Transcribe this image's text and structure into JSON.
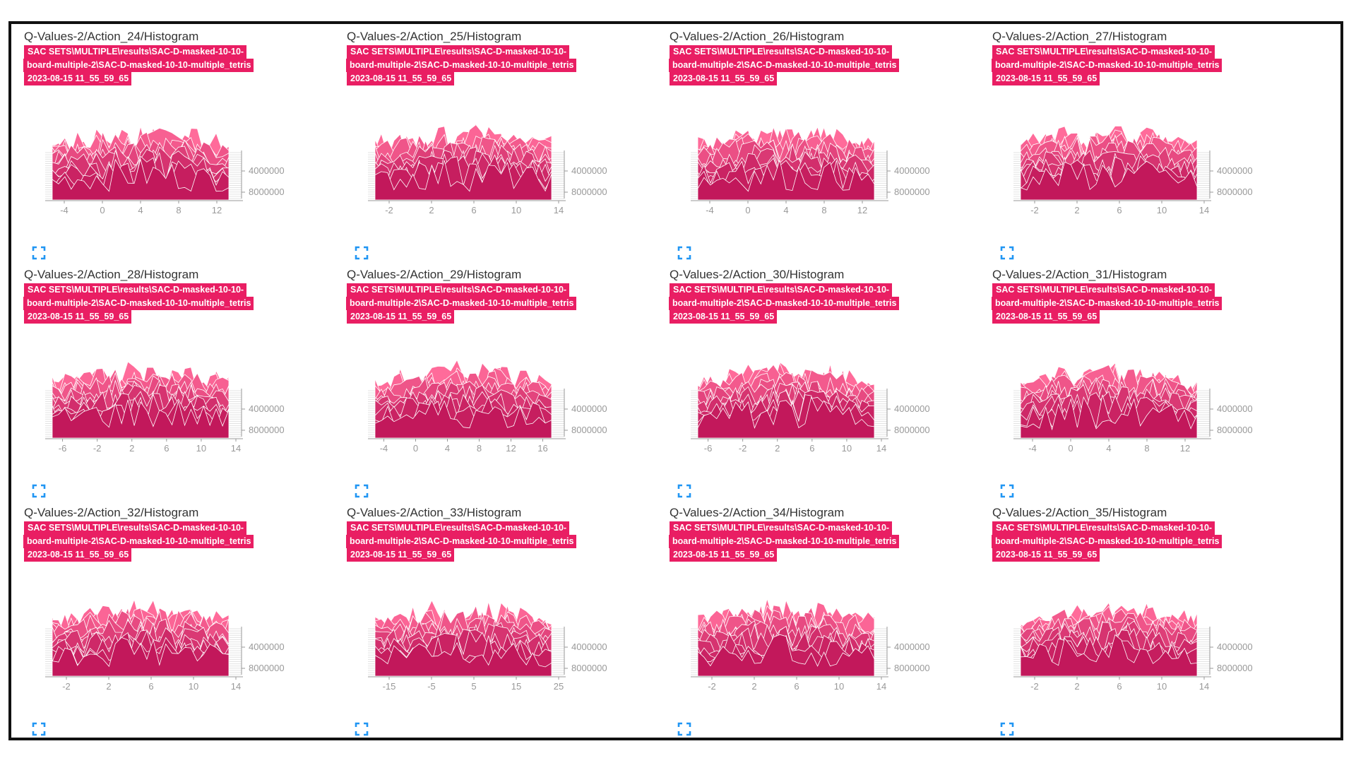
{
  "run": {
    "line1": "SAC SETS\\MULTIPLE\\results\\SAC-D-masked-10-10-",
    "line2": "board-multiple-2\\SAC-D-masked-10-10-multiple_tetris",
    "line3": "2023-08-15 11_55_59_65",
    "tag_color": "#e91e63"
  },
  "colors": {
    "back": "#ff6b9a",
    "front": "#c2185b",
    "stroke": "#ffffff",
    "axis": "#999999",
    "expand_icon": "#2196f3"
  },
  "y_ticks": [
    "4000000",
    "8000000"
  ],
  "cards": [
    {
      "title": "Q-Values-2/Action_24/Histogram",
      "x_ticks": [
        "-4",
        "0",
        "4",
        "8",
        "12"
      ],
      "x_range": [
        -6,
        14
      ]
    },
    {
      "title": "Q-Values-2/Action_25/Histogram",
      "x_ticks": [
        "-2",
        "2",
        "6",
        "10",
        "14"
      ],
      "x_range": [
        -4,
        14
      ]
    },
    {
      "title": "Q-Values-2/Action_26/Histogram",
      "x_ticks": [
        "-4",
        "0",
        "4",
        "8",
        "12"
      ],
      "x_range": [
        -6,
        14
      ]
    },
    {
      "title": "Q-Values-2/Action_27/Histogram",
      "x_ticks": [
        "-2",
        "2",
        "6",
        "10",
        "14"
      ],
      "x_range": [
        -4,
        14
      ]
    },
    {
      "title": "Q-Values-2/Action_28/Histogram",
      "x_ticks": [
        "-6",
        "-2",
        "2",
        "6",
        "10",
        "14"
      ],
      "x_range": [
        -8,
        14
      ]
    },
    {
      "title": "Q-Values-2/Action_29/Histogram",
      "x_ticks": [
        "-4",
        "0",
        "4",
        "8",
        "12",
        "16"
      ],
      "x_range": [
        -6,
        18
      ]
    },
    {
      "title": "Q-Values-2/Action_30/Histogram",
      "x_ticks": [
        "-6",
        "-2",
        "2",
        "6",
        "10",
        "14"
      ],
      "x_range": [
        -8,
        14
      ]
    },
    {
      "title": "Q-Values-2/Action_31/Histogram",
      "x_ticks": [
        "-4",
        "0",
        "4",
        "8",
        "12"
      ],
      "x_range": [
        -6,
        14
      ]
    },
    {
      "title": "Q-Values-2/Action_32/Histogram",
      "x_ticks": [
        "-2",
        "2",
        "6",
        "10",
        "14"
      ],
      "x_range": [
        -4,
        14
      ]
    },
    {
      "title": "Q-Values-2/Action_33/Histogram",
      "x_ticks": [
        "-15",
        "-5",
        "5",
        "15",
        "25"
      ],
      "x_range": [
        -20,
        25
      ]
    },
    {
      "title": "Q-Values-2/Action_34/Histogram",
      "x_ticks": [
        "-2",
        "2",
        "6",
        "10",
        "14"
      ],
      "x_range": [
        -4,
        14
      ]
    },
    {
      "title": "Q-Values-2/Action_35/Histogram",
      "x_ticks": [
        "-2",
        "2",
        "6",
        "10",
        "14"
      ],
      "x_range": [
        -4,
        14
      ]
    }
  ]
}
